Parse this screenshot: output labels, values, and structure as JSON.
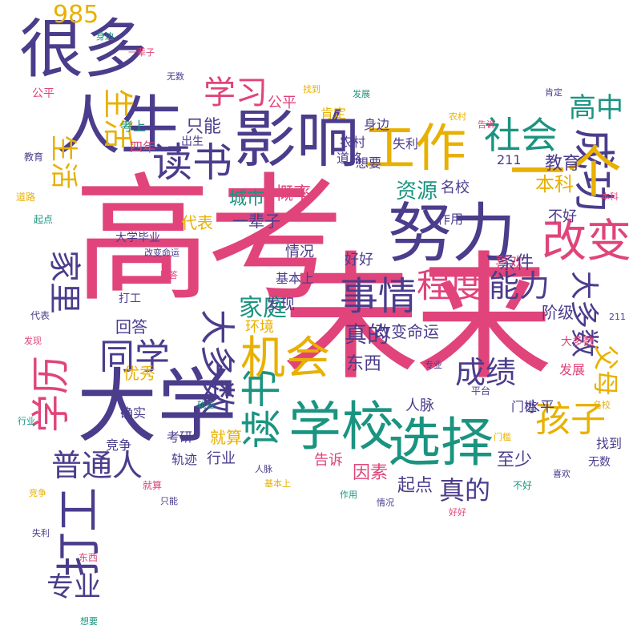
{
  "palette": {
    "pink": "#e0447a",
    "purple": "#4b3c8c",
    "teal": "#1a9480",
    "gold": "#e8b000"
  },
  "words": [
    "高考",
    "未来",
    "大学",
    "学校",
    "选择",
    "工作",
    "努力",
    "人生",
    "影响",
    "很多",
    "一个",
    "成功",
    "机会",
    "读书",
    "改变",
    "孩子",
    "家里",
    "社会",
    "事情",
    "程度",
    "能力",
    "普通人",
    "真的",
    "大部分",
    "成绩",
    "学历",
    "同学",
    "家庭",
    "条件",
    "资源",
    "高中",
    "城市",
    "概率",
    "出生",
    "考上",
    "四年",
    "公平",
    "学习",
    "生活",
    "重要",
    "985",
    "211",
    "确实",
    "大学毕业",
    "优秀",
    "东西",
    "起点",
    "因素",
    "教育",
    "至少",
    "父母",
    "水平",
    "平台",
    "好好",
    "不好",
    "人脉",
    "阶级",
    "本科",
    "发现",
    "环境",
    "大多数",
    "喜欢",
    "名校",
    "作用",
    "基本上",
    "道路",
    "肯定",
    "想要",
    "农村",
    "失利",
    "行业",
    "就算",
    "告诉",
    "考研",
    "一辈子",
    "情况",
    "改变命运",
    "发展",
    "只能",
    "回答",
    "四年",
    "代表",
    "身边",
    "门槛",
    "找到",
    "无数",
    "竞争",
    "专业",
    "轨迹",
    "打工"
  ]
}
